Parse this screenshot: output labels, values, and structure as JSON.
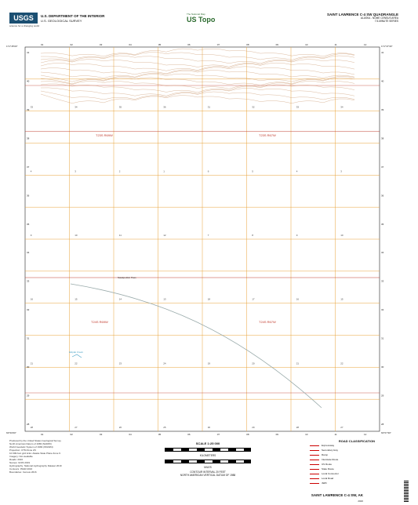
{
  "header": {
    "logo": "USGS",
    "logo_tagline": "science for a changing world",
    "department": "U.S. DEPARTMENT OF THE INTERIOR",
    "survey": "U.S. GEOLOGICAL SURVEY",
    "ustopo_small": "The National Map",
    "ustopo_big": "US Topo",
    "quad_title": "SAINT LAWRENCE C-4 SW QUADRANGLE",
    "state_line": "ALASKA - NOME CENSUS AREA",
    "series_line": "7.5-MINUTE SERIES"
  },
  "map": {
    "township_labels": [
      "T23S R69W",
      "T23S R67W",
      "T24S R69W",
      "T24S R67W"
    ],
    "place_label": "Saiakpekkin Pass",
    "water_label": "Ekipak Creek",
    "easting_ticks_top": [
      "01",
      "02",
      "03",
      "04",
      "05",
      "06",
      "07",
      "08",
      "09",
      "10",
      "11",
      "12"
    ],
    "northing_ticks": [
      "41",
      "40",
      "39",
      "38",
      "37",
      "36",
      "35",
      "34",
      "33",
      "32",
      "31",
      "30",
      "29",
      "28"
    ],
    "section_numbers": [
      "33",
      "34",
      "35",
      "36",
      "31",
      "32",
      "33",
      "34",
      "4",
      "3",
      "2",
      "1",
      "6",
      "5",
      "4",
      "3",
      "9",
      "10",
      "11",
      "12",
      "7",
      "8",
      "9",
      "10",
      "16",
      "15",
      "14",
      "13",
      "18",
      "17",
      "16",
      "15",
      "21",
      "22",
      "23",
      "24",
      "19",
      "20",
      "21",
      "22",
      "28",
      "27",
      "26",
      "25",
      "30",
      "29",
      "28",
      "27"
    ],
    "corner_tl": "171°45'00\"",
    "corner_tr": "171°37'30\"",
    "corner_bl": "63°00'00\"",
    "corner_br": "63°07'30\""
  },
  "footer": {
    "produced_by": "Produced by the United States Geological Survey\nNorth American Datum of 1983 (NAD83)\nWorld Geodetic System of 1984 (WGS84)\nProjection: UTM Zone 2N\n10 000-foot grid ticks: Alaska State Plane Zone 9\nImagery: Not available\nRoads: 2016\nNames: GNIS 2019\nHydrography: National Hydrography Dataset 2019\nContours: IfSAR 2016\nBoundaries: Census 2016",
    "scale_title": "SCALE 1:25 000",
    "scale_units": [
      "KILOMETERS",
      "METERS",
      "MILES",
      "FEET"
    ],
    "contour_note": "CONTOUR INTERVAL 20 FEET\nNORTH AMERICAN VERTICAL DATUM OF 1988",
    "legend_title": "ROAD CLASSIFICATION",
    "legend_items": [
      "Expressway",
      "Secondary Hwy",
      "Ramp",
      "Interstate Route",
      "US Route",
      "State Route",
      "Local Connector",
      "Local Road",
      "4WD"
    ],
    "bottom_title": "SAINT LAWRENCE C-4 SW, AK",
    "year": "2020"
  },
  "colors": {
    "grid_orange": "#e8a33a",
    "grid_red": "#c0392b",
    "contour": "#c28a5c",
    "water": "#4aa3c7",
    "green": "#2c6b2f"
  }
}
